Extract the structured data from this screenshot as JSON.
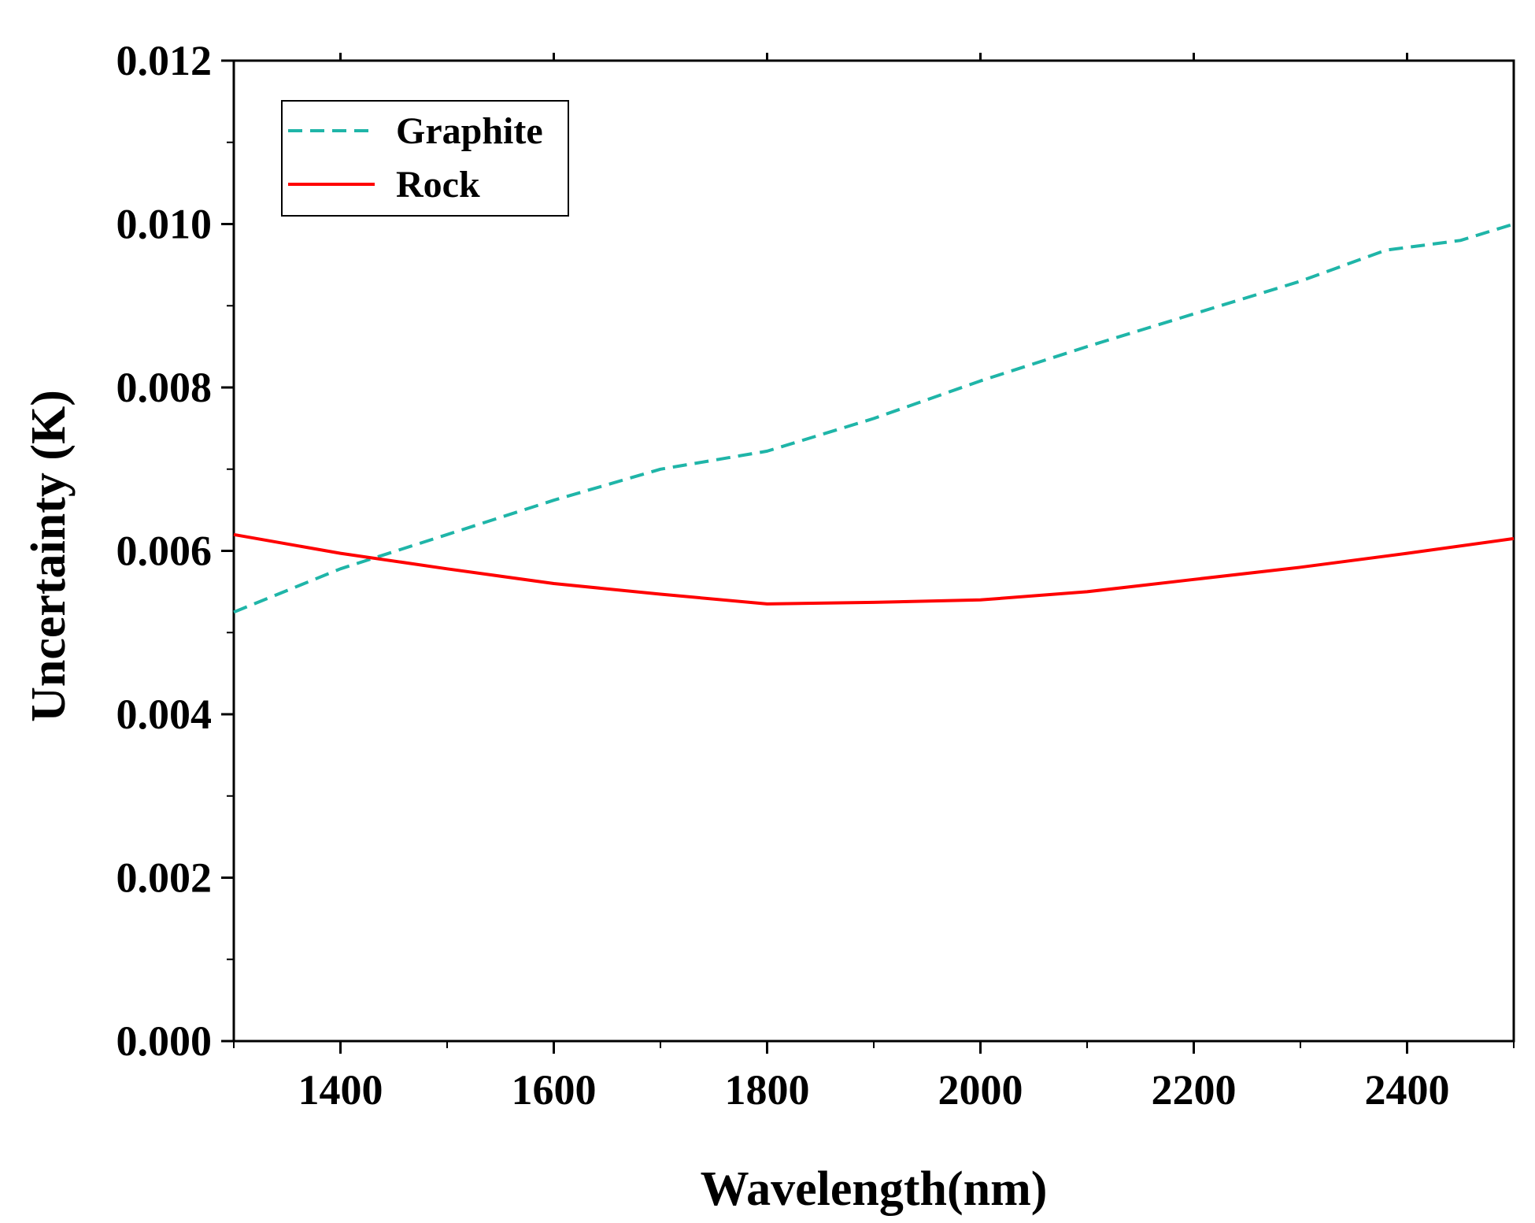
{
  "chart_data": {
    "type": "line",
    "title": "",
    "xlabel": "Wavelength(nm)",
    "ylabel": "Uncertainty (K)",
    "xlim": [
      1300,
      2500
    ],
    "ylim": [
      0.0,
      0.012
    ],
    "x_ticks": [
      1400,
      1600,
      1800,
      2000,
      2200,
      2400
    ],
    "x_tick_labels": [
      "1400",
      "1600",
      "1800",
      "2000",
      "2200",
      "2400"
    ],
    "y_ticks": [
      0.0,
      0.002,
      0.004,
      0.006,
      0.008,
      0.01,
      0.012
    ],
    "y_tick_labels": [
      "0.000",
      "0.002",
      "0.004",
      "0.006",
      "0.008",
      "0.010",
      "0.012"
    ],
    "grid": false,
    "legend_position": "top-left",
    "series": [
      {
        "name": "Graphite",
        "color": "#1fb5a8",
        "style": "dashed",
        "x": [
          1300,
          1400,
          1500,
          1600,
          1700,
          1800,
          1900,
          2000,
          2100,
          2200,
          2300,
          2380,
          2450,
          2500
        ],
        "y": [
          0.00525,
          0.00578,
          0.0062,
          0.00662,
          0.007,
          0.00722,
          0.00762,
          0.00808,
          0.0085,
          0.0089,
          0.0093,
          0.00968,
          0.0098,
          0.01
        ]
      },
      {
        "name": "Rock",
        "color": "#ff0000",
        "style": "solid",
        "x": [
          1300,
          1400,
          1500,
          1600,
          1700,
          1800,
          1900,
          2000,
          2100,
          2200,
          2300,
          2400,
          2500
        ],
        "y": [
          0.0062,
          0.00597,
          0.00578,
          0.0056,
          0.00547,
          0.00535,
          0.00537,
          0.0054,
          0.0055,
          0.00565,
          0.0058,
          0.00597,
          0.00615
        ]
      }
    ]
  }
}
